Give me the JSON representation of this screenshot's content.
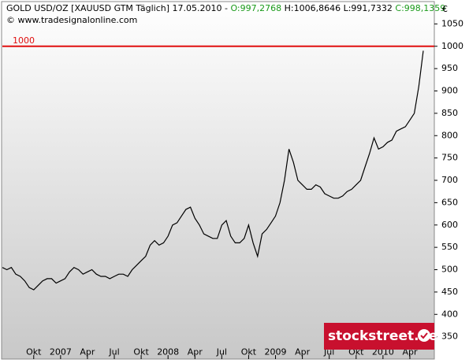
{
  "chart_data": {
    "type": "line",
    "title": "GOLD USD/OZ [XAUUSD GTM  Täglich] 17.05.2010 -",
    "open_label": "O:997,2768",
    "high_low_label": "H:1006,8646 L:991,7332",
    "close_label": "C:998,1359",
    "source": "© www.tradesignalonline.com",
    "currency": "€",
    "watermark": "stockstreet.de",
    "hline": {
      "value": 1000,
      "label": "1000",
      "color": "#e01010"
    },
    "categories": [
      null,
      null,
      null,
      null,
      null,
      null,
      null,
      "Okt",
      null,
      null,
      null,
      null,
      null,
      "2007",
      null,
      null,
      null,
      null,
      null,
      "Apr",
      null,
      null,
      null,
      null,
      null,
      "Jul",
      null,
      null,
      null,
      null,
      null,
      "Okt",
      null,
      null,
      null,
      null,
      null,
      "2008",
      null,
      null,
      null,
      null,
      null,
      "Apr",
      null,
      null,
      null,
      null,
      null,
      "Jul",
      null,
      null,
      null,
      null,
      null,
      "Okt",
      null,
      null,
      null,
      null,
      null,
      "2009",
      null,
      null,
      null,
      null,
      null,
      "Apr",
      null,
      null,
      null,
      null,
      null,
      "Jul",
      null,
      null,
      null,
      null,
      null,
      "Okt",
      null,
      null,
      null,
      null,
      null,
      "2010",
      null,
      null,
      null,
      null,
      null,
      "Apr",
      null,
      null,
      null
    ],
    "series": [
      {
        "name": "GOLD USD/OZ",
        "color": "#000000",
        "values": [
          505,
          500,
          505,
          490,
          485,
          475,
          460,
          455,
          465,
          475,
          480,
          480,
          470,
          475,
          480,
          495,
          505,
          500,
          490,
          495,
          500,
          490,
          485,
          485,
          480,
          485,
          490,
          490,
          485,
          500,
          510,
          520,
          530,
          555,
          565,
          555,
          560,
          575,
          600,
          605,
          620,
          635,
          640,
          615,
          600,
          580,
          575,
          570,
          570,
          600,
          610,
          575,
          560,
          560,
          570,
          600,
          560,
          530,
          580,
          590,
          605,
          620,
          650,
          700,
          770,
          740,
          700,
          690,
          680,
          680,
          690,
          685,
          670,
          665,
          660,
          660,
          665,
          675,
          680,
          690,
          700,
          730,
          760,
          795,
          770,
          775,
          785,
          790,
          810,
          815,
          820,
          835,
          850,
          910,
          990
        ]
      }
    ],
    "ylim": [
      300,
      1100
    ],
    "yticks": [
      350,
      400,
      450,
      500,
      550,
      600,
      650,
      700,
      750,
      800,
      850,
      900,
      950,
      1000,
      1050
    ]
  }
}
